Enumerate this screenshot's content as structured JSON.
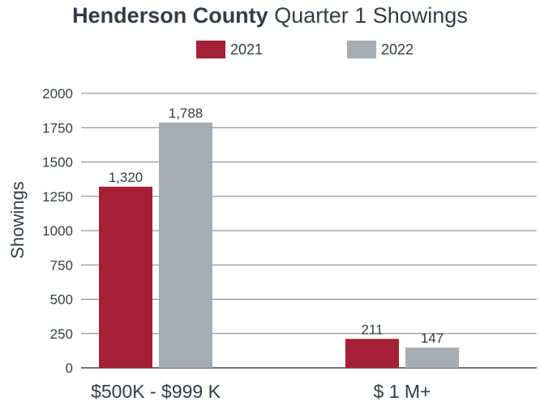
{
  "chart_data": {
    "type": "bar",
    "title_bold": "Henderson County",
    "title_rest": "Quarter 1 Showings",
    "ylabel": "Showings",
    "categories": [
      "$500K - $999 K",
      "$ 1 M+"
    ],
    "series": [
      {
        "name": "2021",
        "color": "#a32035",
        "values": [
          1320,
          211
        ],
        "labels": [
          "1,320",
          "211"
        ]
      },
      {
        "name": "2022",
        "color": "#a4adb3",
        "values": [
          1788,
          147
        ],
        "labels": [
          "1,788",
          "147"
        ]
      }
    ],
    "ylim": [
      0,
      2000
    ],
    "yticks": [
      0,
      250,
      500,
      750,
      1000,
      1250,
      1500,
      1750,
      2000
    ],
    "grid": true,
    "legend_position": "top-center"
  }
}
